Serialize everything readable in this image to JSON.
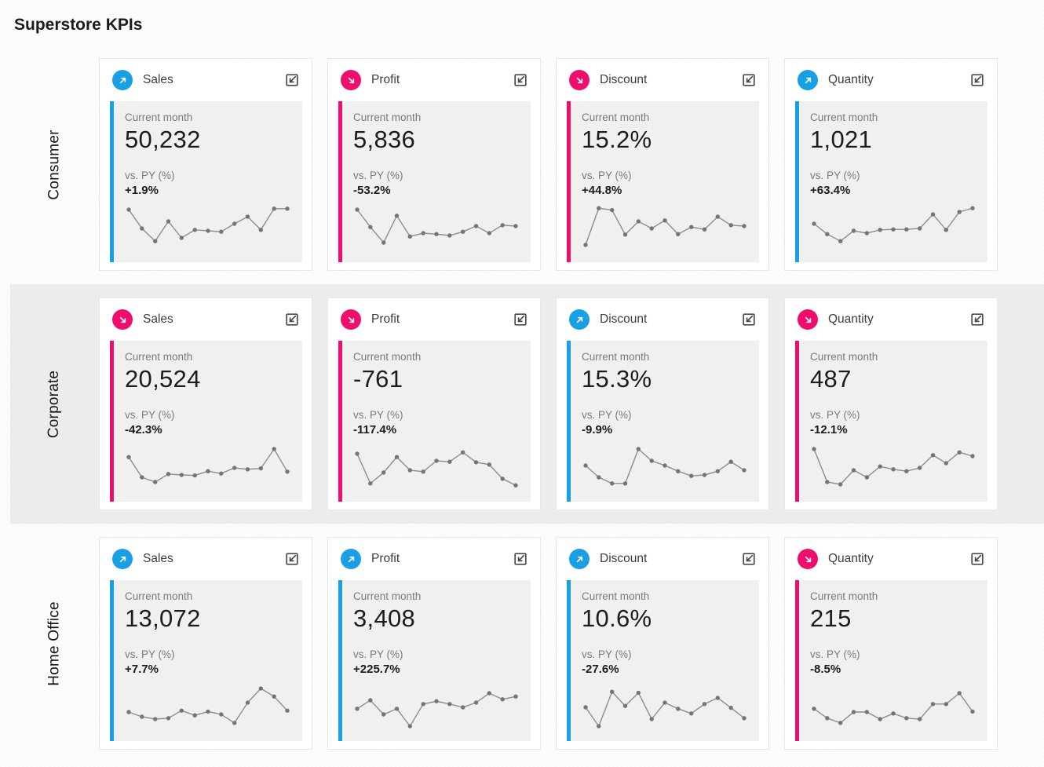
{
  "page_title": "Superstore KPIs",
  "labels": {
    "current_month": "Current month",
    "vs_py": "vs. PY (%)"
  },
  "colors": {
    "favorable": "#189fe4",
    "unfavorable": "#ef0e6d",
    "band_bg": "#ececea",
    "panel_bg": "#f0f0ee",
    "spark_line": "#8d8d8d",
    "spark_dot": "#757575"
  },
  "rows": [
    {
      "segment": "Consumer",
      "cards": [
        {
          "metric": "Sales",
          "trend": "up",
          "value": "50,232",
          "vs_py": "+1.9%"
        },
        {
          "metric": "Profit",
          "trend": "down",
          "value": "5,836",
          "vs_py": "-53.2%"
        },
        {
          "metric": "Discount",
          "trend": "down",
          "value": "15.2%",
          "vs_py": "+44.8%"
        },
        {
          "metric": "Quantity",
          "trend": "up",
          "value": "1,021",
          "vs_py": "+63.4%"
        }
      ]
    },
    {
      "segment": "Corporate",
      "cards": [
        {
          "metric": "Sales",
          "trend": "down",
          "value": "20,524",
          "vs_py": "-42.3%"
        },
        {
          "metric": "Profit",
          "trend": "down",
          "value": "-761",
          "vs_py": "-117.4%"
        },
        {
          "metric": "Discount",
          "trend": "up",
          "value": "15.3%",
          "vs_py": "-9.9%"
        },
        {
          "metric": "Quantity",
          "trend": "down",
          "value": "487",
          "vs_py": "-12.1%"
        }
      ]
    },
    {
      "segment": "Home Office",
      "cards": [
        {
          "metric": "Sales",
          "trend": "up",
          "value": "13,072",
          "vs_py": "+7.7%"
        },
        {
          "metric": "Profit",
          "trend": "up",
          "value": "3,408",
          "vs_py": "+225.7%"
        },
        {
          "metric": "Discount",
          "trend": "up",
          "value": "10.6%",
          "vs_py": "-27.6%"
        },
        {
          "metric": "Quantity",
          "trend": "down",
          "value": "215",
          "vs_py": "-8.5%"
        }
      ]
    }
  ],
  "chart_data": [
    {
      "type": "line",
      "title": "Consumer Sales sparkline",
      "unit": "relative height 0-100 (axes hidden)",
      "values": [
        85,
        45,
        18,
        60,
        25,
        42,
        40,
        38,
        55,
        70,
        42,
        87,
        87
      ]
    },
    {
      "type": "line",
      "title": "Consumer Profit sparkline",
      "unit": "relative height 0-100 (axes hidden)",
      "values": [
        85,
        48,
        15,
        72,
        28,
        35,
        33,
        30,
        38,
        50,
        35,
        52,
        50
      ]
    },
    {
      "type": "line",
      "title": "Consumer Discount sparkline",
      "unit": "relative height 0-100 (axes hidden)",
      "values": [
        10,
        88,
        84,
        32,
        60,
        45,
        62,
        33,
        48,
        43,
        70,
        52,
        50
      ]
    },
    {
      "type": "line",
      "title": "Consumer Quantity sparkline",
      "unit": "relative height 0-100 (axes hidden)",
      "values": [
        55,
        33,
        18,
        40,
        35,
        42,
        43,
        43,
        45,
        75,
        42,
        80,
        88
      ]
    },
    {
      "type": "line",
      "title": "Corporate Sales sparkline",
      "unit": "relative height 0-100 (axes hidden)",
      "values": [
        68,
        25,
        15,
        32,
        30,
        29,
        38,
        33,
        45,
        42,
        44,
        85,
        37
      ]
    },
    {
      "type": "line",
      "title": "Corporate Profit sparkline",
      "unit": "relative height 0-100 (axes hidden)",
      "values": [
        75,
        12,
        35,
        68,
        40,
        37,
        60,
        58,
        78,
        57,
        52,
        22,
        8
      ]
    },
    {
      "type": "line",
      "title": "Corporate Discount sparkline",
      "unit": "relative height 0-100 (axes hidden)",
      "values": [
        50,
        25,
        12,
        12,
        85,
        60,
        50,
        38,
        28,
        30,
        38,
        58,
        40
      ]
    },
    {
      "type": "line",
      "title": "Corporate Quantity sparkline",
      "unit": "relative height 0-100 (axes hidden)",
      "values": [
        85,
        15,
        10,
        40,
        25,
        48,
        42,
        38,
        45,
        72,
        55,
        78,
        70
      ]
    },
    {
      "type": "line",
      "title": "Home Office Sales sparkline",
      "unit": "relative height 0-100 (axes hidden)",
      "values": [
        35,
        25,
        20,
        22,
        38,
        28,
        36,
        30,
        12,
        55,
        85,
        68,
        38
      ]
    },
    {
      "type": "line",
      "title": "Home Office Profit sparkline",
      "unit": "relative height 0-100 (axes hidden)",
      "values": [
        42,
        60,
        30,
        42,
        5,
        52,
        58,
        52,
        45,
        55,
        75,
        62,
        68
      ]
    },
    {
      "type": "line",
      "title": "Home Office Discount sparkline",
      "unit": "relative height 0-100 (axes hidden)",
      "values": [
        45,
        5,
        78,
        48,
        76,
        20,
        55,
        42,
        32,
        52,
        65,
        44,
        22
      ]
    },
    {
      "type": "line",
      "title": "Home Office Quantity sparkline",
      "unit": "relative height 0-100 (axes hidden)",
      "values": [
        42,
        22,
        12,
        35,
        35,
        20,
        32,
        22,
        20,
        52,
        52,
        75,
        36
      ]
    }
  ]
}
